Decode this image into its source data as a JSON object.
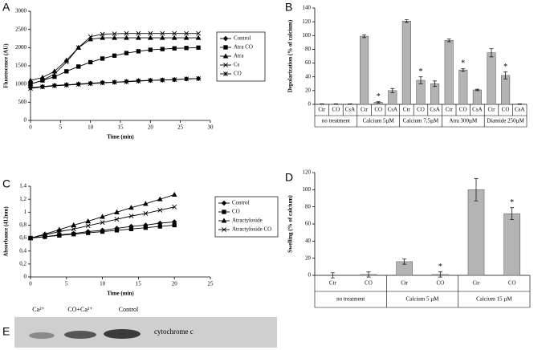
{
  "chart_data": [
    {
      "type": "line",
      "panel_label": "A",
      "ylabel": "Fluorescence (AU)",
      "xlabel": "Time (min)",
      "x": [
        0,
        2,
        4,
        6,
        8,
        10,
        12,
        14,
        16,
        18,
        20,
        22,
        24,
        26,
        28
      ],
      "xlim": [
        0,
        30
      ],
      "xticks": [
        0,
        5,
        10,
        15,
        20,
        25,
        30
      ],
      "ylim": [
        0,
        3000
      ],
      "yticks": [
        0,
        500,
        1000,
        1500,
        2000,
        2500,
        3000
      ],
      "series": [
        {
          "name": "Control",
          "color": "#000000",
          "marker": "diamond",
          "values": [
            900,
            930,
            960,
            980,
            1000,
            1020,
            1040,
            1050,
            1070,
            1090,
            1100,
            1110,
            1120,
            1140,
            1150
          ]
        },
        {
          "name": "Atra CO",
          "color": "#000000",
          "marker": "square",
          "values": [
            1000,
            1100,
            1200,
            1350,
            1480,
            1600,
            1700,
            1780,
            1850,
            1900,
            1940,
            1960,
            1980,
            1990,
            2000
          ]
        },
        {
          "name": "Atra",
          "color": "#000000",
          "marker": "triangle",
          "values": [
            1100,
            1180,
            1350,
            1650,
            2000,
            2230,
            2270,
            2270,
            2270,
            2270,
            2270,
            2270,
            2270,
            2270,
            2270
          ]
        },
        {
          "name": "Cs",
          "color": "#000000",
          "marker": "x",
          "values": [
            1000,
            1100,
            1280,
            1600,
            2000,
            2300,
            2370,
            2380,
            2390,
            2390,
            2390,
            2390,
            2390,
            2390,
            2390
          ]
        },
        {
          "name": "CO",
          "color": "#000000",
          "marker": "star",
          "values": [
            880,
            920,
            950,
            970,
            990,
            1010,
            1030,
            1050,
            1060,
            1080,
            1100,
            1110,
            1120,
            1140,
            1150
          ]
        }
      ]
    },
    {
      "type": "bar",
      "panel_label": "B",
      "ylabel": "Depolarization (% of calcium)",
      "color": "#b4b4b4",
      "ylim": [
        0,
        140
      ],
      "yticks": [
        0,
        20,
        40,
        60,
        80,
        100,
        120,
        140
      ],
      "groups": [
        {
          "label": "no treatment",
          "categories": [
            "Ctr",
            "CO",
            "CsA"
          ],
          "values": [
            0.5,
            0.5,
            0.5
          ],
          "errors": [
            0.3,
            0.3,
            0.3
          ],
          "significance": [
            null,
            null,
            null
          ]
        },
        {
          "label": "Calcium 5µM",
          "categories": [
            "Ctr",
            "CO",
            "CsA"
          ],
          "values": [
            99,
            3,
            20
          ],
          "errors": [
            2,
            1,
            3
          ],
          "significance": [
            null,
            "*",
            null
          ]
        },
        {
          "label": "Calcium 7,5µM",
          "categories": [
            "Ctr",
            "CO",
            "CsA"
          ],
          "values": [
            121,
            35,
            30
          ],
          "errors": [
            2,
            5,
            4
          ],
          "significance": [
            null,
            "*",
            null
          ]
        },
        {
          "label": "Atra 300µM",
          "categories": [
            "Ctr",
            "CO",
            "CsA"
          ],
          "values": [
            93,
            50,
            21
          ],
          "errors": [
            2,
            2,
            1
          ],
          "significance": [
            null,
            "*",
            null
          ]
        },
        {
          "label": "Diamide 250µM",
          "categories": [
            "Ctr",
            "CO",
            "CsA"
          ],
          "values": [
            75,
            42,
            0.5
          ],
          "errors": [
            6,
            5,
            0.3
          ],
          "significance": [
            null,
            "*",
            null
          ]
        }
      ]
    },
    {
      "type": "line",
      "panel_label": "C",
      "ylabel": "Absorbance (412nm)",
      "xlabel": "Time (min)",
      "x": [
        0,
        2,
        4,
        6,
        8,
        10,
        12,
        14,
        16,
        18,
        20
      ],
      "xlim": [
        0,
        25
      ],
      "xticks": [
        0,
        5,
        10,
        15,
        20,
        25
      ],
      "ylim": [
        0,
        1.4
      ],
      "yticks": [
        0,
        {
          "value": 0.2,
          "label": "0,2"
        },
        {
          "value": 0.4,
          "label": "0,4"
        },
        {
          "value": 0.6,
          "label": "0,6"
        },
        {
          "value": 0.8,
          "label": "0,8"
        },
        1,
        {
          "value": 1.2,
          "label": "1,2"
        },
        {
          "value": 1.4,
          "label": "1,4"
        }
      ],
      "series": [
        {
          "name": "Control",
          "color": "#000000",
          "marker": "diamond",
          "values": [
            0.6,
            0.62,
            0.65,
            0.67,
            0.7,
            0.72,
            0.75,
            0.78,
            0.8,
            0.83,
            0.85
          ]
        },
        {
          "name": "CO",
          "color": "#000000",
          "marker": "square",
          "values": [
            0.6,
            0.62,
            0.64,
            0.66,
            0.68,
            0.7,
            0.72,
            0.74,
            0.76,
            0.78,
            0.8
          ]
        },
        {
          "name": "Atractyloside",
          "color": "#000000",
          "marker": "triangle",
          "values": [
            0.6,
            0.66,
            0.73,
            0.8,
            0.86,
            0.93,
            1.0,
            1.07,
            1.13,
            1.2,
            1.27
          ]
        },
        {
          "name": "Atractyloside CO",
          "color": "#000000",
          "marker": "x",
          "values": [
            0.6,
            0.65,
            0.7,
            0.74,
            0.79,
            0.84,
            0.89,
            0.94,
            0.98,
            1.03,
            1.08
          ]
        }
      ]
    },
    {
      "type": "bar",
      "panel_label": "D",
      "ylabel": "Swelling (% of calcium)",
      "color": "#b4b4b4",
      "ylim": [
        0,
        120
      ],
      "yticks": [
        0,
        20,
        40,
        60,
        80,
        100,
        120
      ],
      "groups": [
        {
          "label": "no treatment",
          "categories": [
            "Ctr",
            "CO"
          ],
          "values": [
            0,
            1
          ],
          "errors": [
            3,
            3
          ],
          "significance": [
            null,
            null
          ]
        },
        {
          "label": "Calcium 5 µM",
          "categories": [
            "Ctr",
            "CO"
          ],
          "values": [
            16,
            1
          ],
          "errors": [
            3,
            3
          ],
          "significance": [
            null,
            "*"
          ]
        },
        {
          "label": "Calcium 15 µM",
          "categories": [
            "Ctr",
            "CO"
          ],
          "values": [
            100,
            72
          ],
          "errors": [
            13,
            7
          ],
          "significance": [
            null,
            "*"
          ]
        }
      ]
    }
  ],
  "blot": {
    "panel_label": "E",
    "lanes": [
      "Ca²⁺",
      "CO+Ca²⁺",
      "Control"
    ],
    "protein": "cytochrome c"
  }
}
